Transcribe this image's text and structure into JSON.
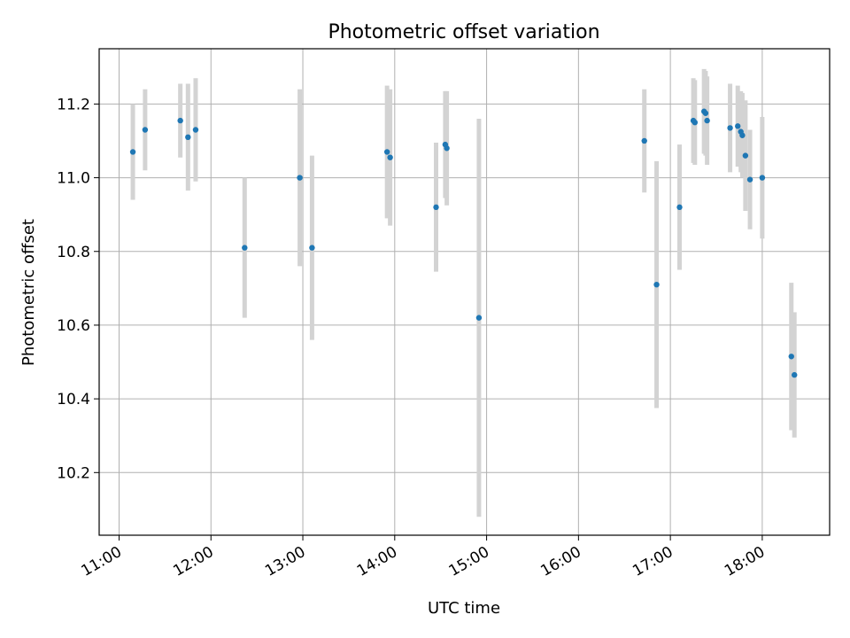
{
  "chart_data": {
    "type": "scatter",
    "title": "Photometric offset variation",
    "xlabel": "UTC time",
    "ylabel": "Photometric offset",
    "x_ticks": [
      "11:00",
      "12:00",
      "13:00",
      "14:00",
      "15:00",
      "16:00",
      "17:00",
      "18:00"
    ],
    "y_ticks": [
      "10.2",
      "10.4",
      "10.6",
      "10.8",
      "11.0",
      "11.2"
    ],
    "xlim": [
      "10:47",
      "18:44"
    ],
    "ylim": [
      10.03,
      11.35
    ],
    "grid": true,
    "colors": {
      "point": "#1f77b4",
      "errorbar": "#d3d3d3",
      "grid": "#b0b0b0"
    },
    "points": [
      {
        "x": "11:09",
        "y": 11.07,
        "err": 0.13
      },
      {
        "x": "11:17",
        "y": 11.13,
        "err": 0.11
      },
      {
        "x": "11:40",
        "y": 11.155,
        "err": 0.1
      },
      {
        "x": "11:45",
        "y": 11.11,
        "err": 0.145
      },
      {
        "x": "11:50",
        "y": 11.13,
        "err": 0.14
      },
      {
        "x": "12:22",
        "y": 10.81,
        "err": 0.19
      },
      {
        "x": "12:58",
        "y": 11.0,
        "err": 0.24
      },
      {
        "x": "13:06",
        "y": 10.81,
        "err": 0.25
      },
      {
        "x": "13:55",
        "y": 11.07,
        "err": 0.18
      },
      {
        "x": "13:57",
        "y": 11.055,
        "err": 0.185
      },
      {
        "x": "14:27",
        "y": 10.92,
        "err": 0.175
      },
      {
        "x": "14:33",
        "y": 11.09,
        "err": 0.145
      },
      {
        "x": "14:34",
        "y": 11.08,
        "err": 0.155
      },
      {
        "x": "14:55",
        "y": 10.62,
        "err": 0.54
      },
      {
        "x": "16:43",
        "y": 11.1,
        "err": 0.14
      },
      {
        "x": "16:51",
        "y": 10.71,
        "err": 0.335
      },
      {
        "x": "17:06",
        "y": 10.92,
        "err": 0.17
      },
      {
        "x": "17:15",
        "y": 11.155,
        "err": 0.115
      },
      {
        "x": "17:16",
        "y": 11.15,
        "err": 0.115
      },
      {
        "x": "17:22",
        "y": 11.18,
        "err": 0.115
      },
      {
        "x": "17:23",
        "y": 11.175,
        "err": 0.115
      },
      {
        "x": "17:24",
        "y": 11.155,
        "err": 0.12
      },
      {
        "x": "17:39",
        "y": 11.135,
        "err": 0.12
      },
      {
        "x": "17:44",
        "y": 11.14,
        "err": 0.11
      },
      {
        "x": "17:46",
        "y": 11.125,
        "err": 0.11
      },
      {
        "x": "17:47",
        "y": 11.115,
        "err": 0.115
      },
      {
        "x": "17:49",
        "y": 11.06,
        "err": 0.15
      },
      {
        "x": "17:52",
        "y": 10.995,
        "err": 0.135
      },
      {
        "x": "18:00",
        "y": 11.0,
        "err": 0.165
      },
      {
        "x": "18:19",
        "y": 10.515,
        "err": 0.2
      },
      {
        "x": "18:21",
        "y": 10.465,
        "err": 0.17
      }
    ]
  }
}
